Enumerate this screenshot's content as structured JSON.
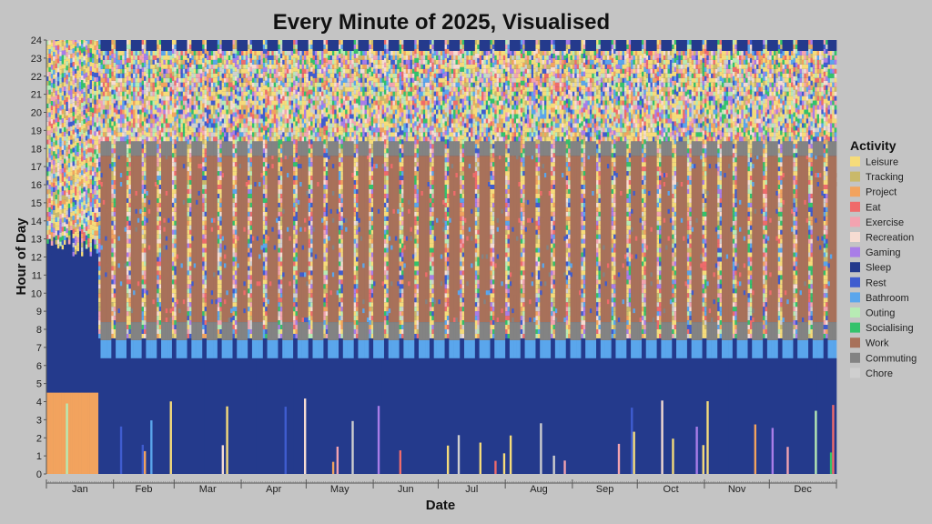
{
  "chart_data": {
    "type": "heatmap",
    "title": "Every Minute of 2025, Visualised",
    "xlabel": "Date",
    "ylabel": "Hour of Day",
    "ylim": [
      0,
      24
    ],
    "y_ticks": [
      0,
      1,
      2,
      3,
      4,
      5,
      6,
      7,
      8,
      9,
      10,
      11,
      12,
      13,
      14,
      15,
      16,
      17,
      18,
      19,
      20,
      21,
      22,
      23,
      24
    ],
    "x_ticks": [
      "Jan",
      "Feb",
      "Mar",
      "Apr",
      "May",
      "Jun",
      "Jul",
      "Aug",
      "Sep",
      "Oct",
      "Nov",
      "Dec"
    ],
    "x_range": [
      "2025-01-01",
      "2025-12-31"
    ],
    "grid": false,
    "legend_position": "right",
    "legend_title": "Activity",
    "categories": [
      {
        "name": "Leisure",
        "color": "#f6dc7a"
      },
      {
        "name": "Tracking",
        "color": "#c9b96a"
      },
      {
        "name": "Project",
        "color": "#f2a35e"
      },
      {
        "name": "Eat",
        "color": "#ef6b6b"
      },
      {
        "name": "Exercise",
        "color": "#f3a3b0"
      },
      {
        "name": "Recreation",
        "color": "#f6dcd2"
      },
      {
        "name": "Gaming",
        "color": "#a97de8"
      },
      {
        "name": "Sleep",
        "color": "#243a8c"
      },
      {
        "name": "Rest",
        "color": "#3f5ccf"
      },
      {
        "name": "Bathroom",
        "color": "#5aa6ec"
      },
      {
        "name": "Outing",
        "color": "#b7ebb4"
      },
      {
        "name": "Socialising",
        "color": "#33c26b"
      },
      {
        "name": "Work",
        "color": "#a8715a"
      },
      {
        "name": "Commuting",
        "color": "#838383"
      },
      {
        "name": "Chore",
        "color": "#cfcfcf"
      }
    ],
    "typical_day": {
      "weekday": [
        {
          "activity": "Sleep",
          "start": 0,
          "end": 6.4
        },
        {
          "activity": "Bathroom",
          "start": 6.4,
          "end": 7.4
        },
        {
          "activity": "Commuting",
          "start": 7.4,
          "end": 8.4
        },
        {
          "activity": "Work",
          "start": 8.4,
          "end": 17.6
        },
        {
          "activity": "Commuting",
          "start": 17.6,
          "end": 18.4
        },
        {
          "activity": "Leisure",
          "start": 18.4,
          "end": 23.4
        },
        {
          "activity": "Sleep",
          "start": 23.4,
          "end": 24
        }
      ],
      "weekend": [
        {
          "activity": "Sleep",
          "start": 0,
          "end": 7.5
        },
        {
          "activity": "Leisure",
          "start": 7.5,
          "end": 24
        }
      ],
      "early_january_sleep_start": 4.5
    }
  }
}
